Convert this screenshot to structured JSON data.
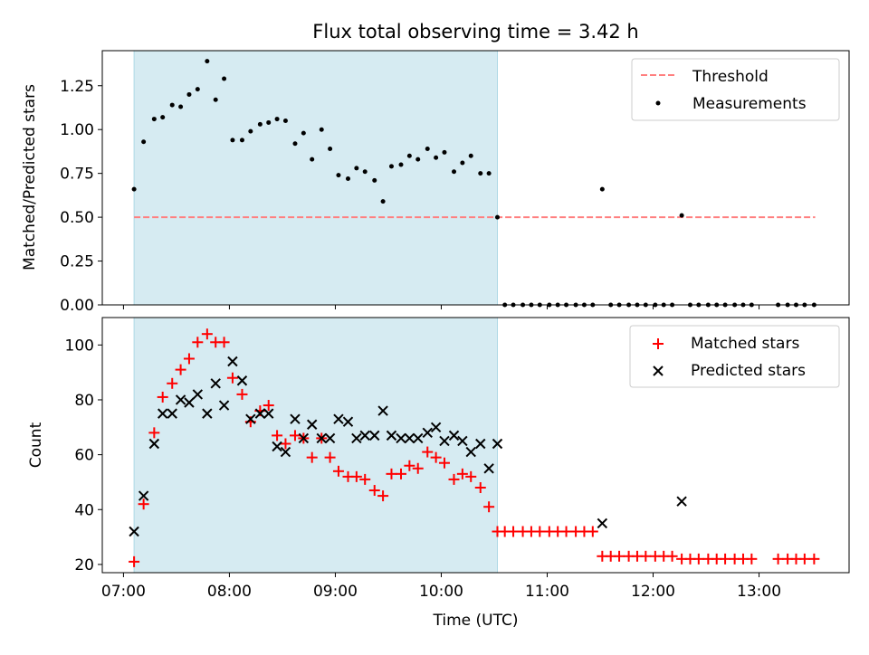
{
  "chart_data": [
    {
      "type": "scatter",
      "title": "Flux total observing time = 3.42 h",
      "ylabel": "Matched/Predicted stars",
      "ylim": [
        0,
        1.45
      ],
      "xlim": [
        6.8,
        13.85
      ],
      "y_ticks": [
        0,
        0.25,
        0.5,
        0.75,
        1.0,
        1.25
      ],
      "y_tick_labels": [
        "0.00",
        "0.25",
        "0.50",
        "0.75",
        "1.00",
        "1.25"
      ],
      "shaded_span_hours": [
        7.1,
        10.53
      ],
      "shade_color": "#add8e6",
      "threshold": {
        "name": "Threshold",
        "value": 0.5,
        "x_range": [
          7.1,
          13.53
        ],
        "color": "#ff7f7f",
        "style": "dashed"
      },
      "series": [
        {
          "name": "Measurements",
          "color": "#000000",
          "marker": "dot",
          "x": [
            7.1,
            7.19,
            7.29,
            7.37,
            7.46,
            7.54,
            7.62,
            7.7,
            7.79,
            7.87,
            7.95,
            8.03,
            8.12,
            8.2,
            8.29,
            8.37,
            8.45,
            8.53,
            8.62,
            8.7,
            8.78,
            8.87,
            8.95,
            9.03,
            9.12,
            9.2,
            9.28,
            9.37,
            9.45,
            9.53,
            9.62,
            9.7,
            9.78,
            9.87,
            9.95,
            10.03,
            10.12,
            10.2,
            10.28,
            10.37,
            10.45,
            10.53,
            10.6,
            10.68,
            10.77,
            10.85,
            10.93,
            11.02,
            11.1,
            11.18,
            11.27,
            11.35,
            11.43,
            11.52,
            11.6,
            11.68,
            11.77,
            11.85,
            11.93,
            12.02,
            12.1,
            12.18,
            12.27,
            12.35,
            12.43,
            12.52,
            12.6,
            12.68,
            12.77,
            12.85,
            12.93,
            13.18,
            13.27,
            13.35,
            13.43,
            13.52
          ],
          "y": [
            0.66,
            0.93,
            1.06,
            1.07,
            1.14,
            1.13,
            1.2,
            1.23,
            1.39,
            1.17,
            1.29,
            0.94,
            0.94,
            0.99,
            1.03,
            1.04,
            1.06,
            1.05,
            0.92,
            0.98,
            0.83,
            1.0,
            0.89,
            0.74,
            0.72,
            0.78,
            0.76,
            0.71,
            0.59,
            0.79,
            0.8,
            0.85,
            0.83,
            0.89,
            0.84,
            0.87,
            0.76,
            0.81,
            0.85,
            0.75,
            0.75,
            0.5,
            0,
            0,
            0,
            0,
            0,
            0,
            0,
            0,
            0,
            0,
            0,
            0.66,
            0,
            0,
            0,
            0,
            0,
            0,
            0,
            0,
            0.51,
            0,
            0,
            0,
            0,
            0,
            0,
            0,
            0,
            0,
            0,
            0,
            0,
            0
          ]
        }
      ],
      "legend": "top-right"
    },
    {
      "type": "scatter",
      "xlabel": "Time (UTC)",
      "ylabel": "Count",
      "ylim": [
        17,
        110
      ],
      "xlim": [
        6.8,
        13.85
      ],
      "x_ticks": [
        7,
        8,
        9,
        10,
        11,
        12,
        13
      ],
      "x_tick_labels": [
        "07:00",
        "08:00",
        "09:00",
        "10:00",
        "11:00",
        "12:00",
        "13:00"
      ],
      "y_ticks": [
        20,
        40,
        60,
        80,
        100
      ],
      "y_tick_labels": [
        "20",
        "40",
        "60",
        "80",
        "100"
      ],
      "shaded_span_hours": [
        7.1,
        10.53
      ],
      "shade_color": "#add8e6",
      "series": [
        {
          "name": "Matched stars",
          "color": "#ff0000",
          "marker": "plus",
          "x": [
            7.1,
            7.19,
            7.29,
            7.37,
            7.46,
            7.54,
            7.62,
            7.7,
            7.79,
            7.87,
            7.95,
            8.03,
            8.12,
            8.2,
            8.29,
            8.37,
            8.45,
            8.53,
            8.62,
            8.7,
            8.78,
            8.87,
            8.95,
            9.03,
            9.12,
            9.2,
            9.28,
            9.37,
            9.45,
            9.53,
            9.62,
            9.7,
            9.78,
            9.87,
            9.95,
            10.03,
            10.12,
            10.2,
            10.28,
            10.37,
            10.45,
            10.53,
            10.6,
            10.68,
            10.77,
            10.85,
            10.93,
            11.02,
            11.1,
            11.18,
            11.27,
            11.35,
            11.43,
            11.52,
            11.6,
            11.68,
            11.77,
            11.85,
            11.93,
            12.02,
            12.1,
            12.18,
            12.27,
            12.35,
            12.43,
            12.52,
            12.6,
            12.68,
            12.77,
            12.85,
            12.93,
            13.18,
            13.27,
            13.35,
            13.43,
            13.52
          ],
          "y": [
            21,
            42,
            68,
            81,
            86,
            91,
            95,
            101,
            104,
            101,
            101,
            88,
            82,
            72,
            76,
            78,
            67,
            64,
            67,
            66,
            59,
            66,
            59,
            54,
            52,
            52,
            51,
            47,
            45,
            53,
            53,
            56,
            55,
            61,
            59,
            57,
            51,
            53,
            52,
            48,
            41,
            32,
            32,
            32,
            32,
            32,
            32,
            32,
            32,
            32,
            32,
            32,
            32,
            23,
            23,
            23,
            23,
            23,
            23,
            23,
            23,
            23,
            22,
            22,
            22,
            22,
            22,
            22,
            22,
            22,
            22,
            22,
            22,
            22,
            22,
            22
          ]
        },
        {
          "name": "Predicted stars",
          "color": "#000000",
          "marker": "x",
          "x": [
            7.1,
            7.19,
            7.29,
            7.37,
            7.46,
            7.54,
            7.62,
            7.7,
            7.79,
            7.87,
            7.95,
            8.03,
            8.12,
            8.2,
            8.29,
            8.37,
            8.45,
            8.53,
            8.62,
            8.7,
            8.78,
            8.87,
            8.95,
            9.03,
            9.12,
            9.2,
            9.28,
            9.37,
            9.45,
            9.53,
            9.62,
            9.7,
            9.78,
            9.87,
            9.95,
            10.03,
            10.12,
            10.2,
            10.28,
            10.37,
            10.45,
            10.53,
            11.52,
            12.27
          ],
          "y": [
            32,
            45,
            64,
            75,
            75,
            80,
            79,
            82,
            75,
            86,
            78,
            94,
            87,
            73,
            75,
            75,
            63,
            61,
            73,
            66,
            71,
            66,
            66,
            73,
            72,
            66,
            67,
            67,
            76,
            67,
            66,
            66,
            66,
            68,
            70,
            65,
            67,
            65,
            61,
            64,
            55,
            64,
            35,
            43
          ]
        }
      ],
      "legend": "top-right"
    }
  ]
}
